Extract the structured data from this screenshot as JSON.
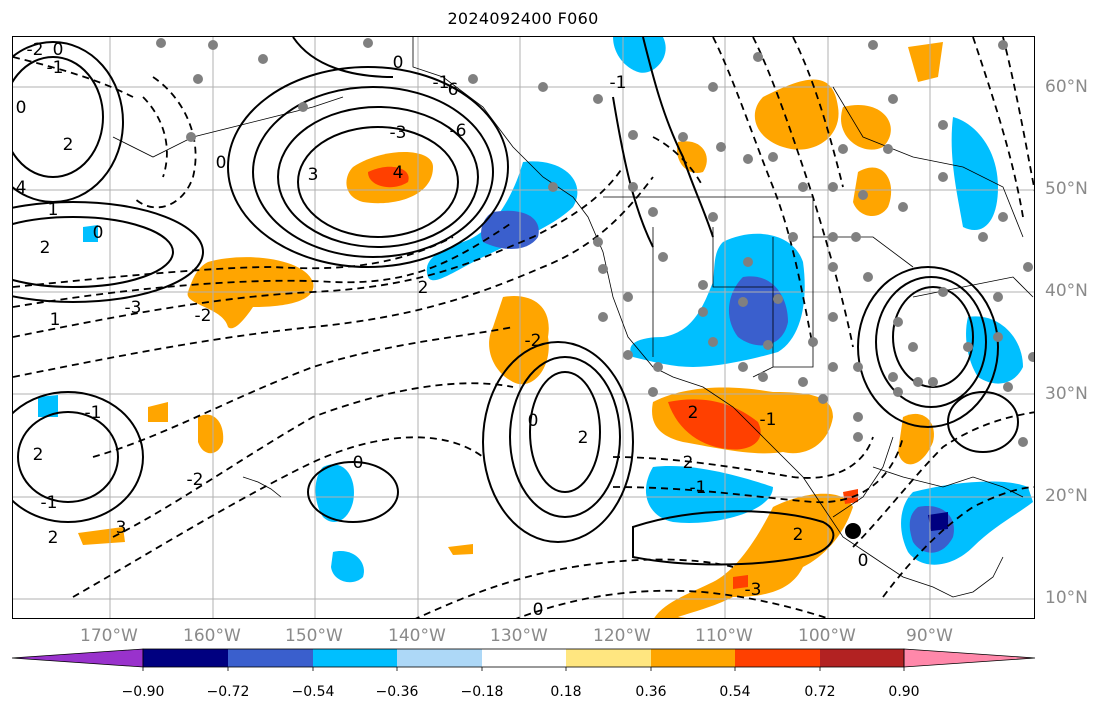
{
  "title": "2024092400 F060",
  "map": {
    "projection": "lat-lon",
    "lon_range": [
      -180,
      -80
    ],
    "lat_range": [
      8,
      65
    ],
    "grid": true,
    "lat_labels": [
      "60°N",
      "50°N",
      "40°N",
      "30°N",
      "20°N",
      "10°N"
    ],
    "lon_labels": [
      "170°W",
      "160°W",
      "150°W",
      "140°W",
      "130°W",
      "120°W",
      "110°W",
      "100°W",
      "90°W"
    ],
    "contour_labels": [
      "-2",
      "0",
      "-1",
      "0",
      "-1",
      "6",
      "4",
      "3",
      "0",
      "2",
      "-3",
      "-6",
      "0",
      "4",
      "1",
      "2",
      "0",
      "2",
      "-3",
      "1",
      "-2",
      "-2",
      "0",
      "2",
      "2",
      "-1",
      "-1",
      "2",
      "3",
      "0",
      "-2",
      "2",
      "-3",
      "2",
      "-1",
      "2",
      "-1",
      "0",
      "0",
      "-1"
    ]
  },
  "colorbar": {
    "ticks": [
      "−0.90",
      "−0.72",
      "−0.54",
      "−0.36",
      "−0.18",
      "0.18",
      "0.36",
      "0.54",
      "0.72",
      "0.90"
    ],
    "colors": {
      "below_min": "#9932cc",
      "n090_n072": "#000080",
      "n072_n054": "#3a5fcd",
      "n054_n036": "#00bfff",
      "n036_n018": "#add8f7",
      "n018_p018": "#ffffff",
      "p018_p036": "#ffe680",
      "p036_p054": "#ffa500",
      "p054_p072": "#ff4000",
      "p072_p090": "#b22222",
      "above_max": "#ff88aa"
    }
  }
}
